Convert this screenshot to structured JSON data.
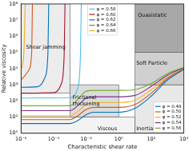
{
  "chart_data": {
    "type": "line",
    "xlabel": "Characteristic shear rate",
    "ylabel": "Relative viscosity",
    "log": true,
    "grid": false,
    "xlim": [
      1e-06,
      10000.0
    ],
    "ylim": [
      1,
      100000000.0
    ],
    "xticks": [
      {
        "value": 1e-06,
        "label": "10⁻⁶"
      },
      {
        "value": 0.0001,
        "label": "10⁻⁴"
      },
      {
        "value": 0.01,
        "label": "10⁻²"
      },
      {
        "value": 1,
        "label": "10⁰"
      },
      {
        "value": 100,
        "label": "10²"
      },
      {
        "value": 10000,
        "label": "10⁴"
      }
    ],
    "yticks": [
      {
        "value": 1,
        "label": "10⁰"
      },
      {
        "value": 10,
        "label": "10¹"
      },
      {
        "value": 100,
        "label": "10²"
      },
      {
        "value": 1000,
        "label": "10³"
      },
      {
        "value": 10000,
        "label": "10⁴"
      },
      {
        "value": 100000,
        "label": "10⁵"
      },
      {
        "value": 1000000,
        "label": "10⁶"
      },
      {
        "value": 10000000,
        "label": "10⁷"
      },
      {
        "value": 100000000,
        "label": "10⁸"
      }
    ],
    "regions": [
      {
        "label": "Shear jamming",
        "x": [
          1e-06,
          0.001
        ],
        "y": [
          300,
          100000000.0
        ],
        "color": "#ececec",
        "at": [
          2e-06,
          200000
        ]
      },
      {
        "label": "Frictional thickening",
        "x": [
          0.001,
          1
        ],
        "y": [
          10,
          1000
        ],
        "color": "#dcdcdc",
        "at": [
          0.0015,
          100
        ]
      },
      {
        "label": "Viscous",
        "x": [
          1e-06,
          10
        ],
        "y": [
          1,
          10
        ],
        "color": "#f3f3f3",
        "at": [
          0.05,
          1.8
        ]
      },
      {
        "label": "Inertial",
        "x": [
          10,
          10000
        ],
        "y": [
          1,
          1000
        ],
        "color": "#e8e8e8",
        "at": [
          12,
          1.8
        ]
      },
      {
        "label": "Soft Particle",
        "x": [
          10,
          10000
        ],
        "y": [
          1000,
          100000
        ],
        "color": "#d0d0d0",
        "at": [
          12,
          20000
        ]
      },
      {
        "label": "Quasistatic",
        "x": [
          10,
          10000
        ],
        "y": [
          100000,
          100000000.0
        ],
        "color": "#a8a8a8",
        "at": [
          15,
          20000000
        ]
      }
    ],
    "series": [
      {
        "name": "φ = 0.58",
        "color": "#4DBEEE",
        "legend": "upper center",
        "x": [
          1e-06,
          0.001,
          0.003,
          0.0045,
          0.005
        ],
        "values": [
          150,
          160,
          600,
          100000,
          100000000.0
        ]
      },
      {
        "name": "φ = 0.60",
        "color": "#A2142F",
        "legend": "upper center",
        "x": [
          1e-06,
          0.0001,
          0.0003,
          0.00045,
          0.0005
        ],
        "values": [
          300,
          320,
          1200,
          100000,
          100000000.0
        ]
      },
      {
        "name": "φ = 0.62",
        "color": "#0072BD",
        "legend": "upper center",
        "x": [
          1e-06,
          1e-05,
          3e-05,
          4.5e-05,
          5e-05
        ],
        "values": [
          700,
          750,
          3000,
          100000,
          100000000.0
        ]
      },
      {
        "name": "φ = 0.64",
        "color": "#D95319",
        "legend": "upper center",
        "x": [
          1e-06,
          3e-06,
          4.5e-06,
          5e-06
        ],
        "values": [
          2000,
          8000,
          100000,
          100000000.0
        ]
      },
      {
        "name": "φ = 0.66",
        "color": "#EDB120",
        "legend": "upper center",
        "x": [
          1e-06,
          1.5e-06,
          1.8e-06
        ],
        "values": [
          8000,
          100000,
          100000000.0
        ]
      },
      {
        "name": "φ = 0.48",
        "color": "#0072BD",
        "legend": "lower right",
        "x": [
          1e-06,
          0.001,
          0.003,
          0.01,
          0.03,
          1,
          10,
          100,
          1000,
          10000
        ],
        "values": [
          4,
          4,
          6,
          14,
          20,
          20,
          35,
          200,
          2000,
          9000
        ]
      },
      {
        "name": "φ = 0.50",
        "color": "#D95319",
        "legend": "lower right",
        "x": [
          1e-06,
          0.001,
          0.003,
          0.01,
          0.03,
          1,
          10,
          100,
          1000,
          10000
        ],
        "values": [
          7,
          7,
          12,
          30,
          40,
          40,
          60,
          300,
          2500,
          9500
        ]
      },
      {
        "name": "φ = 0.52",
        "color": "#EDB120",
        "legend": "lower right",
        "x": [
          1e-06,
          0.001,
          0.003,
          0.01,
          0.03,
          1,
          10,
          100,
          1000,
          10000
        ],
        "values": [
          12,
          12,
          22,
          60,
          80,
          80,
          110,
          500,
          3000,
          10000
        ]
      },
      {
        "name": "φ = 0.54",
        "color": "#7E2F8E",
        "legend": "lower right",
        "x": [
          1e-06,
          0.001,
          0.003,
          0.01,
          0.03,
          1,
          10,
          100,
          1000,
          10000
        ],
        "values": [
          25,
          25,
          50,
          150,
          180,
          180,
          220,
          800,
          4000,
          11000
        ]
      },
      {
        "name": "φ = 0.56",
        "color": "#77AC30",
        "legend": "lower right",
        "x": [
          1e-06,
          0.001,
          0.003,
          0.01,
          0.03,
          1,
          10,
          100,
          1000,
          10000
        ],
        "values": [
          50,
          50,
          120,
          400,
          450,
          450,
          500,
          1200,
          5000,
          12000
        ]
      }
    ]
  }
}
